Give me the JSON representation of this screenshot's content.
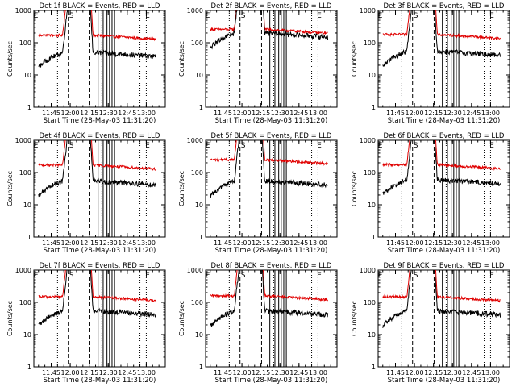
{
  "chart_data": {
    "type": "line",
    "x_unit": "time",
    "x_range": [
      "11:31:20",
      "13:15:00"
    ],
    "y_scale": "log",
    "ylim": [
      1,
      1000
    ],
    "ylabel": "Counts/sec",
    "xlabel": "Start Time (28-May-03 11:31:20)",
    "x_ticks": [
      "11:45",
      "12:00",
      "12:15",
      "12:30",
      "12:45",
      "13:00"
    ],
    "y_ticks": [
      "1",
      "10",
      "100",
      "1000"
    ],
    "markers": [
      "E",
      "S",
      "E"
    ],
    "series_legend": "BLACK = Events, RED = LLD",
    "panels": [
      {
        "title": "Det 1f BLACK = Events, RED = LLD",
        "red_level": 170,
        "black_level": 50
      },
      {
        "title": "Det 2f BLACK = Events, RED = LLD",
        "red_level": 260,
        "black_level": 200
      },
      {
        "title": "Det 3f BLACK = Events, RED = LLD",
        "red_level": 180,
        "black_level": 55
      },
      {
        "title": "Det 4f BLACK = Events, RED = LLD",
        "red_level": 170,
        "black_level": 55
      },
      {
        "title": "Det 5f BLACK = Events, RED = LLD",
        "red_level": 250,
        "black_level": 55
      },
      {
        "title": "Det 6f BLACK = Events, RED = LLD",
        "red_level": 175,
        "black_level": 60
      },
      {
        "title": "Det 7f BLACK = Events, RED = LLD",
        "red_level": 150,
        "black_level": 55
      },
      {
        "title": "Det 8f BLACK = Events, RED = LLD",
        "red_level": 160,
        "black_level": 55
      },
      {
        "title": "Det 9f BLACK = Events, RED = LLD",
        "red_level": 150,
        "black_level": 55
      }
    ],
    "dashed_lines_at": [
      "11:58:30",
      "12:15:30"
    ],
    "solid_lines_at": [
      "12:22",
      "12:26",
      "12:29",
      "12:31",
      "12:33",
      "12:35"
    ],
    "dotted_lines_at": [
      "11:50",
      "12:25",
      "12:55",
      "13:00"
    ],
    "colors": {
      "events": "#000000",
      "lld": "#e00000"
    }
  }
}
